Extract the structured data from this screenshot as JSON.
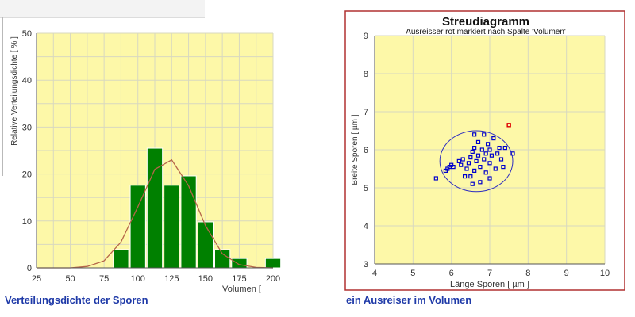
{
  "captions": {
    "left": "Verteilungsdichte der Sporen",
    "right": "ein Ausreiser im Volumen"
  },
  "colors": {
    "plot_bg": "#fdf8a8",
    "grid": "#d8d8c0",
    "bar": "#008000",
    "curve": "#b5654a",
    "scatter": "#0000cc",
    "outlier": "#dd0000",
    "frame_border": "#b03030",
    "caption": "#1f3aa8"
  },
  "chart_data": [
    {
      "type": "bar",
      "title": "",
      "xlabel": "Volumen [",
      "ylabel": "Relative Verteilungsdichte [ % ]",
      "xlim": [
        25,
        200
      ],
      "ylim": [
        0,
        50
      ],
      "xticks": [
        25,
        50,
        75,
        100,
        125,
        150,
        175,
        200
      ],
      "yticks": [
        0,
        10,
        20,
        30,
        40,
        50
      ],
      "grid": true,
      "bin_width": 12.5,
      "bins": [
        {
          "center": 87.5,
          "value": 3.9
        },
        {
          "center": 100,
          "value": 17.6
        },
        {
          "center": 112.5,
          "value": 25.5
        },
        {
          "center": 125,
          "value": 17.6
        },
        {
          "center": 137.5,
          "value": 19.6
        },
        {
          "center": 150,
          "value": 9.8
        },
        {
          "center": 162.5,
          "value": 3.9
        },
        {
          "center": 175,
          "value": 2.0
        },
        {
          "center": 200,
          "value": 2.0
        }
      ],
      "fit_curve": [
        [
          25,
          0
        ],
        [
          50,
          0
        ],
        [
          62.5,
          0.3
        ],
        [
          75,
          1.5
        ],
        [
          87.5,
          5.5
        ],
        [
          100,
          13
        ],
        [
          112.5,
          21
        ],
        [
          125,
          23
        ],
        [
          137.5,
          17.5
        ],
        [
          150,
          9
        ],
        [
          162.5,
          3
        ],
        [
          175,
          0.7
        ],
        [
          187.5,
          0.1
        ],
        [
          200,
          0
        ]
      ]
    },
    {
      "type": "scatter",
      "title": "Streudiagramm",
      "subtitle": "Ausreisser rot markiert nach Spalte 'Volumen'",
      "xlabel": "Länge Sporen [ µm ]",
      "ylabel": "Breite Sporen [ µm ]",
      "xlim": [
        4,
        10
      ],
      "ylim": [
        3,
        9
      ],
      "xticks": [
        4,
        5,
        6,
        7,
        8,
        9,
        10
      ],
      "yticks": [
        3,
        4,
        5,
        6,
        7,
        8,
        9
      ],
      "grid": true,
      "points": [
        [
          5.6,
          5.25
        ],
        [
          5.85,
          5.45
        ],
        [
          5.9,
          5.5
        ],
        [
          5.95,
          5.55
        ],
        [
          6.0,
          5.6
        ],
        [
          6.05,
          5.55
        ],
        [
          6.2,
          5.7
        ],
        [
          6.25,
          5.6
        ],
        [
          6.3,
          5.75
        ],
        [
          6.4,
          5.5
        ],
        [
          6.45,
          5.65
        ],
        [
          6.5,
          5.8
        ],
        [
          6.5,
          5.3
        ],
        [
          6.55,
          5.95
        ],
        [
          6.6,
          5.45
        ],
        [
          6.6,
          6.05
        ],
        [
          6.65,
          5.7
        ],
        [
          6.7,
          5.85
        ],
        [
          6.7,
          6.2
        ],
        [
          6.75,
          5.55
        ],
        [
          6.75,
          5.15
        ],
        [
          6.8,
          6.0
        ],
        [
          6.85,
          5.75
        ],
        [
          6.9,
          5.9
        ],
        [
          6.9,
          5.4
        ],
        [
          6.95,
          6.15
        ],
        [
          7.0,
          5.65
        ],
        [
          7.0,
          6.0
        ],
        [
          7.05,
          5.85
        ],
        [
          7.1,
          6.3
        ],
        [
          7.15,
          5.5
        ],
        [
          7.2,
          5.9
        ],
        [
          7.25,
          6.05
        ],
        [
          7.3,
          5.75
        ],
        [
          7.35,
          5.55
        ],
        [
          6.6,
          6.4
        ],
        [
          6.55,
          5.1
        ],
        [
          6.35,
          5.3
        ],
        [
          7.6,
          5.9
        ],
        [
          7.0,
          5.25
        ],
        [
          7.4,
          6.05
        ],
        [
          6.85,
          6.4
        ]
      ],
      "outliers": [
        [
          7.5,
          6.65
        ]
      ],
      "ellipse": {
        "center": [
          6.65,
          5.7
        ],
        "rx": 0.95,
        "ry": 0.8
      }
    }
  ]
}
